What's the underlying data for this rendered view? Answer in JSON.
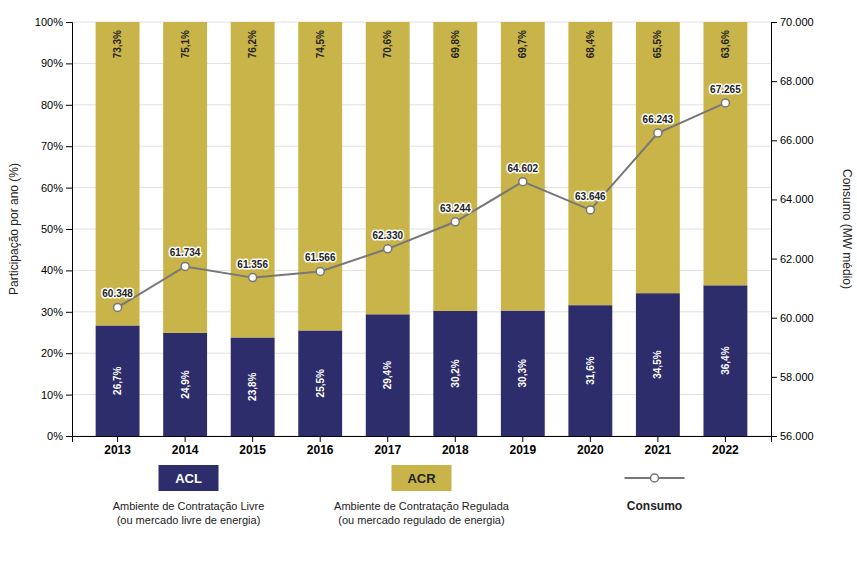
{
  "chart_data": {
    "type": "bar",
    "stacked": true,
    "grid": true,
    "legend": "bottom",
    "data_labels": true,
    "ylabel": "Participação por ano (%)",
    "y2label": "Consumo (MW médio)",
    "categories": [
      "2013",
      "2014",
      "2015",
      "2016",
      "2017",
      "2018",
      "2019",
      "2020",
      "2021",
      "2022"
    ],
    "series": [
      {
        "name": "ACL",
        "type": "bar",
        "color": "#2d2d6b",
        "values": [
          26.7,
          24.9,
          23.8,
          25.5,
          29.4,
          30.2,
          30.3,
          31.6,
          34.5,
          36.4
        ],
        "value_labels": [
          "26,7%",
          "24,9%",
          "23,8%",
          "25,5%",
          "29,4%",
          "30,2%",
          "30,3%",
          "31,6%",
          "34,5%",
          "36,4%"
        ]
      },
      {
        "name": "ACR",
        "type": "bar",
        "color": "#c9b44a",
        "values": [
          73.3,
          75.1,
          76.2,
          74.5,
          70.6,
          69.8,
          69.7,
          68.4,
          65.5,
          63.6
        ],
        "value_labels": [
          "73,3%",
          "75,1%",
          "76,2%",
          "74,5%",
          "70,6%",
          "69,8%",
          "69,7%",
          "68,4%",
          "65,5%",
          "63,6%"
        ]
      },
      {
        "name": "Consumo",
        "type": "line",
        "axis": "y2",
        "color": "#777777",
        "marker": "circle",
        "values": [
          60348,
          61734,
          61356,
          61566,
          62330,
          63244,
          64602,
          63646,
          66243,
          67265
        ],
        "value_labels": [
          "60.348",
          "61.734",
          "61.356",
          "61.566",
          "62.330",
          "63.244",
          "64.602",
          "63.646",
          "66.243",
          "67.265"
        ]
      }
    ],
    "annotations": [
      "Ambiente de Contratação Livre\n(ou mercado livre de energia)",
      "Ambiente de Contratação Regulada\n(ou mercado regulado de energia)"
    ],
    "ylim": [
      0,
      100
    ],
    "yticks": [
      {
        "value": 0,
        "label": "0%"
      },
      {
        "value": 10,
        "label": "10%"
      },
      {
        "value": 20,
        "label": "20%"
      },
      {
        "value": 30,
        "label": "30%"
      },
      {
        "value": 40,
        "label": "40%"
      },
      {
        "value": 50,
        "label": "50%"
      },
      {
        "value": 60,
        "label": "60%"
      },
      {
        "value": 70,
        "label": "70%"
      },
      {
        "value": 80,
        "label": "80%"
      },
      {
        "value": 90,
        "label": "90%"
      },
      {
        "value": 100,
        "label": "100%"
      }
    ],
    "y2lim": [
      56000,
      70000
    ],
    "y2ticks": [
      {
        "value": 56000,
        "label": "56.000"
      },
      {
        "value": 58000,
        "label": "58.000"
      },
      {
        "value": 60000,
        "label": "60.000"
      },
      {
        "value": 62000,
        "label": "62.000"
      },
      {
        "value": 64000,
        "label": "64.000"
      },
      {
        "value": 66000,
        "label": "66.000"
      },
      {
        "value": 68000,
        "label": "68.000"
      },
      {
        "value": 70000,
        "label": "70.000"
      }
    ]
  }
}
